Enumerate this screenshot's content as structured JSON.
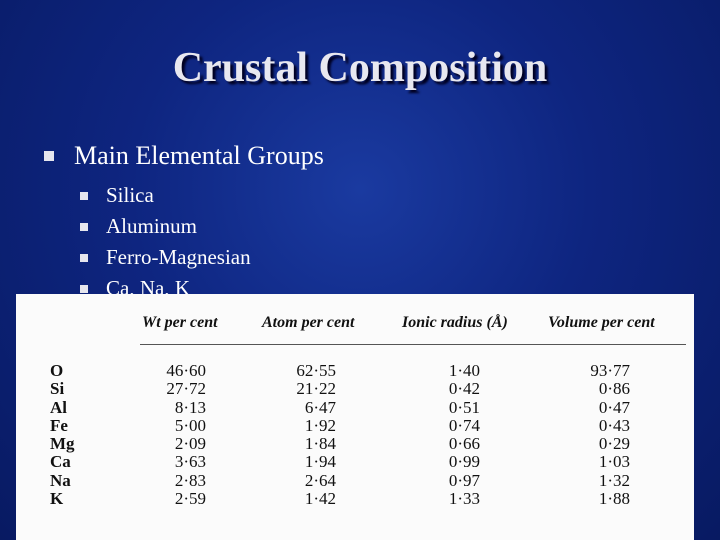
{
  "slide": {
    "title": "Crustal Composition",
    "bullet": "Main Elemental Groups",
    "sub_bullets": [
      "Silica",
      "Aluminum",
      "Ferro-Magnesian",
      "Ca, Na, K"
    ]
  },
  "table": {
    "headers": [
      "Wt per cent",
      "Atom per cent",
      "Ionic radius (Å)",
      "Volume per cent"
    ],
    "elements": [
      "O",
      "Si",
      "Al",
      "Fe",
      "Mg",
      "Ca",
      "Na",
      "K"
    ],
    "wt_per_cent": [
      "46·60",
      "27·72",
      "8·13",
      "5·00",
      "2·09",
      "3·63",
      "2·83",
      "2·59"
    ],
    "atom_per_cent": [
      "62·55",
      "21·22",
      "6·47",
      "1·92",
      "1·84",
      "1·94",
      "2·64",
      "1·42"
    ],
    "ionic_radius": [
      "1·40",
      "0·42",
      "0·51",
      "0·74",
      "0·66",
      "0·99",
      "0·97",
      "1·33"
    ],
    "volume_per_cent": [
      "93·77",
      "0·86",
      "0·47",
      "0·43",
      "0·29",
      "1·03",
      "1·32",
      "1·88"
    ]
  }
}
